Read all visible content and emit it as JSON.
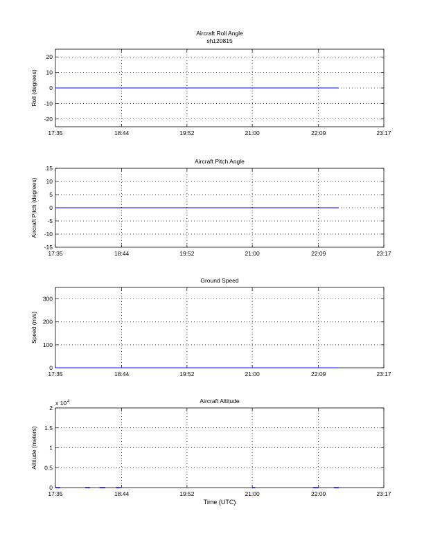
{
  "figure": {
    "xlabel": "Time (UTC)"
  },
  "chart_data": [
    {
      "type": "line",
      "title": "Aircraft Roll Angle",
      "subtitle": "sh120815",
      "ylabel": "Roll (degrees)",
      "xlim": [
        "17:35",
        "23:17"
      ],
      "ylim": [
        -25,
        25
      ],
      "x_ticks": [
        "17:35",
        "18:44",
        "19:52",
        "21:00",
        "22:09",
        "23:17"
      ],
      "y_ticks": [
        -20,
        -10,
        0,
        10,
        20
      ],
      "grid": true,
      "series": [
        {
          "color": "#0000ff",
          "x": [
            "17:35",
            "22:30"
          ],
          "y": [
            0,
            0
          ]
        }
      ]
    },
    {
      "type": "line",
      "title": "Aircraft Pitch Angle",
      "ylabel": "Aircraft Pitch (degrees)",
      "xlim": [
        "17:35",
        "23:17"
      ],
      "ylim": [
        -15,
        15
      ],
      "x_ticks": [
        "17:35",
        "18:44",
        "19:52",
        "21:00",
        "22:09",
        "23:17"
      ],
      "y_ticks": [
        -15,
        -10,
        -5,
        0,
        5,
        10,
        15
      ],
      "grid": true,
      "series": [
        {
          "color": "#0000ff",
          "x": [
            "17:35",
            "22:30"
          ],
          "y": [
            0,
            0
          ]
        }
      ]
    },
    {
      "type": "line",
      "title": "Ground Speed",
      "ylabel": "Speed (m/s)",
      "xlim": [
        "17:35",
        "23:17"
      ],
      "ylim": [
        0,
        350
      ],
      "x_ticks": [
        "17:35",
        "18:44",
        "19:52",
        "21:00",
        "22:09",
        "23:17"
      ],
      "y_ticks": [
        0,
        100,
        200,
        300
      ],
      "grid": true,
      "series": [
        {
          "color": "#0000ff",
          "x": [
            "17:35",
            "22:30"
          ],
          "y": [
            0,
            0
          ]
        }
      ]
    },
    {
      "type": "line",
      "title": "Aircraft Altitude",
      "ylabel": "Altitude (meters)",
      "y_exponent_base": "x 10",
      "y_exponent_power": "4",
      "xlim": [
        "17:35",
        "23:17"
      ],
      "ylim": [
        0,
        2
      ],
      "x_ticks": [
        "17:35",
        "18:44",
        "19:52",
        "21:00",
        "22:09",
        "23:17"
      ],
      "y_ticks": [
        "0",
        "0.5",
        "1",
        "1.5",
        "2"
      ],
      "grid": true,
      "series": [
        {
          "color": "#0000ff",
          "segments": [
            [
              "17:35",
              "17:40"
            ],
            [
              "18:06",
              "18:11"
            ],
            [
              "18:21",
              "18:27"
            ],
            [
              "18:38",
              "18:43"
            ],
            [
              "21:00",
              "21:03"
            ],
            [
              "22:03",
              "22:09"
            ],
            [
              "22:25",
              "22:30"
            ]
          ],
          "y": 0
        }
      ]
    }
  ]
}
